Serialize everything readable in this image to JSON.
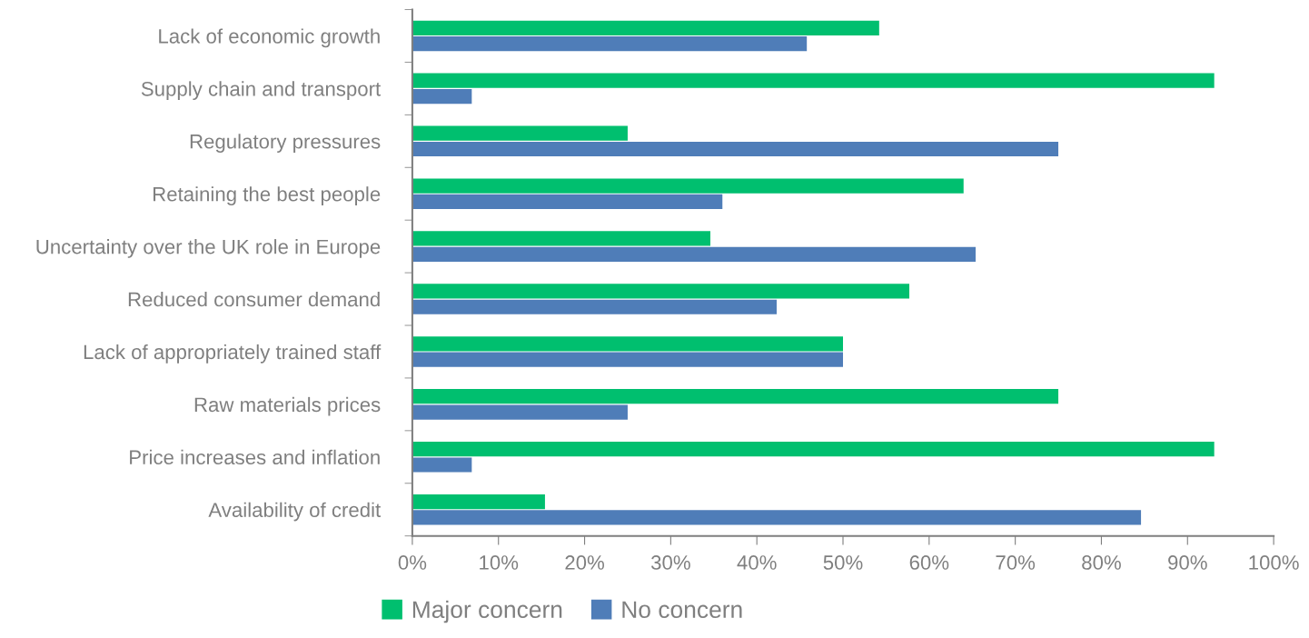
{
  "chart_data": {
    "type": "bar",
    "orientation": "horizontal",
    "categories": [
      "Lack of economic growth",
      "Supply chain and transport",
      "Regulatory pressures",
      "Retaining the best people",
      "Uncertainty over the UK role in Europe",
      "Reduced consumer demand",
      "Lack of appropriately trained staff",
      "Raw materials prices",
      "Price increases and inflation",
      "Availability of credit"
    ],
    "series": [
      {
        "name": "Major concern",
        "color": "#00bf6f",
        "values": [
          54.2,
          93.1,
          25,
          64,
          34.6,
          57.7,
          50,
          75,
          93.1,
          15.4
        ]
      },
      {
        "name": "No concern",
        "color": "#4f7db8",
        "values": [
          45.8,
          6.9,
          75,
          36,
          65.4,
          42.3,
          50,
          25,
          6.9,
          84.6
        ]
      }
    ],
    "xlim": [
      0,
      100
    ],
    "xticks": [
      {
        "value": 0,
        "label": "0%"
      },
      {
        "value": 10,
        "label": "10%"
      },
      {
        "value": 20,
        "label": "20%"
      },
      {
        "value": 30,
        "label": "30%"
      },
      {
        "value": 40,
        "label": "40%"
      },
      {
        "value": 50,
        "label": "50%"
      },
      {
        "value": 60,
        "label": "60%"
      },
      {
        "value": 70,
        "label": "70%"
      },
      {
        "value": 80,
        "label": "80%"
      },
      {
        "value": 90,
        "label": "90%"
      },
      {
        "value": 100,
        "label": "100%"
      }
    ],
    "grid": false,
    "legend": "bottom"
  }
}
